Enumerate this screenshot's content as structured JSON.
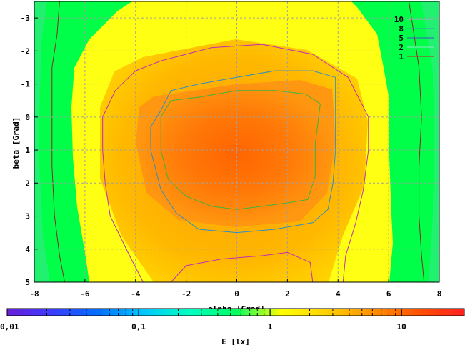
{
  "chart_data": {
    "type": "heatmap",
    "xlabel": "alpha [Grad]",
    "ylabel": "beta [Grad]",
    "xlim": [
      -8,
      8
    ],
    "ylim": [
      -3.5,
      5
    ],
    "y_inverted": true,
    "grid": true,
    "legend_position": "top-right",
    "x_ticks": [
      "-8",
      "-6",
      "-4",
      "-2",
      "0",
      "2",
      "4",
      "6",
      "8"
    ],
    "y_ticks": [
      "-3",
      "-2",
      "-1",
      "0",
      "1",
      "2",
      "3",
      "4",
      "5"
    ],
    "contour_levels": [
      {
        "name": "10",
        "color": "#c0a0c8"
      },
      {
        "name": "8",
        "color": "#2a9fb0"
      },
      {
        "name": "5",
        "color": "#3f52c8"
      },
      {
        "name": "2",
        "color": "#8fe6c8"
      },
      {
        "name": "1",
        "color": "#c02828"
      }
    ],
    "contours": [
      {
        "level": "1",
        "color": "#8b2a2a",
        "points": [
          [
            -7.0,
            -3.5
          ],
          [
            -7.1,
            -2.5
          ],
          [
            -7.3,
            -1.5
          ],
          [
            -7.3,
            0
          ],
          [
            -7.3,
            1.5
          ],
          [
            -7.2,
            3
          ],
          [
            -7.0,
            4.2
          ],
          [
            -6.8,
            5
          ]
        ]
      },
      {
        "level": "1",
        "color": "#8b2a2a",
        "points": [
          [
            6.8,
            -3.5
          ],
          [
            7.0,
            -2.5
          ],
          [
            7.2,
            -1.5
          ],
          [
            7.3,
            0
          ],
          [
            7.2,
            1.5
          ],
          [
            7.2,
            3
          ],
          [
            7.3,
            4.2
          ],
          [
            7.4,
            5
          ]
        ]
      },
      {
        "level": "2",
        "color": "#c02cb8",
        "closed": true,
        "points": [
          [
            -3.0,
            -1.7
          ],
          [
            -1.0,
            -2.1
          ],
          [
            1.0,
            -2.2
          ],
          [
            3.0,
            -1.9
          ],
          [
            4.4,
            -1.2
          ],
          [
            5.2,
            0
          ],
          [
            5.2,
            1.0
          ],
          [
            5.0,
            2.2
          ],
          [
            4.7,
            3.2
          ],
          [
            4.3,
            4.2
          ],
          [
            4.2,
            5.0
          ],
          [
            3.0,
            5.0
          ],
          [
            2.9,
            4.4
          ],
          [
            2.0,
            4.1
          ],
          [
            1.0,
            4.2
          ],
          [
            -0.6,
            4.3
          ],
          [
            -2.0,
            4.5
          ],
          [
            -2.6,
            5.0
          ],
          [
            -3.7,
            5.0
          ],
          [
            -4.3,
            4.1
          ],
          [
            -5.0,
            3.0
          ],
          [
            -5.2,
            2.0
          ],
          [
            -5.3,
            1.0
          ],
          [
            -5.3,
            0.0
          ],
          [
            -4.8,
            -0.8
          ],
          [
            -4.0,
            -1.4
          ]
        ]
      },
      {
        "level": "5",
        "color": "#2a8fc8",
        "closed": true,
        "points": [
          [
            -3.0,
            -0.2
          ],
          [
            -2.6,
            -0.8
          ],
          [
            -1.5,
            -1.0
          ],
          [
            0.0,
            -1.2
          ],
          [
            1.5,
            -1.4
          ],
          [
            3.0,
            -1.4
          ],
          [
            3.9,
            -1.2
          ],
          [
            3.9,
            0.0
          ],
          [
            3.9,
            1.0
          ],
          [
            3.8,
            2.0
          ],
          [
            3.6,
            2.8
          ],
          [
            3.0,
            3.2
          ],
          [
            1.5,
            3.4
          ],
          [
            0.0,
            3.5
          ],
          [
            -1.5,
            3.4
          ],
          [
            -2.4,
            2.9
          ],
          [
            -3.0,
            2.2
          ],
          [
            -3.4,
            1.0
          ],
          [
            -3.4,
            0.3
          ]
        ]
      },
      {
        "level": "8",
        "color": "#3cb43c",
        "closed": true,
        "points": [
          [
            -2.6,
            -0.5
          ],
          [
            -1.5,
            -0.6
          ],
          [
            0.0,
            -0.8
          ],
          [
            1.5,
            -0.8
          ],
          [
            2.7,
            -0.7
          ],
          [
            3.3,
            -0.4
          ],
          [
            3.1,
            0.8
          ],
          [
            3.1,
            1.8
          ],
          [
            2.8,
            2.5
          ],
          [
            2.0,
            2.6
          ],
          [
            1.0,
            2.7
          ],
          [
            0.0,
            2.8
          ],
          [
            -1.0,
            2.7
          ],
          [
            -2.0,
            2.4
          ],
          [
            -2.7,
            1.9
          ],
          [
            -3.0,
            1.0
          ],
          [
            -3.0,
            0.0
          ]
        ]
      }
    ],
    "colorbar": {
      "label": "E [lx]",
      "scale": "log",
      "range": [
        0.01,
        30
      ],
      "tick_labels": [
        "0,01",
        "0,1",
        "1",
        "10"
      ],
      "tick_values": [
        0.01,
        0.1,
        1,
        10
      ],
      "color_stops": [
        "#6a1fd8",
        "#3a3cff",
        "#0070ff",
        "#00c8ff",
        "#00ffc0",
        "#00ff60",
        "#ffff00",
        "#ffd000",
        "#ff9000",
        "#ff5000",
        "#ff2020"
      ]
    },
    "field_colors": {
      "outer": "#00ff48",
      "mid": "#ffff10",
      "inner": "#ffb000",
      "core": "#ff7010"
    }
  }
}
